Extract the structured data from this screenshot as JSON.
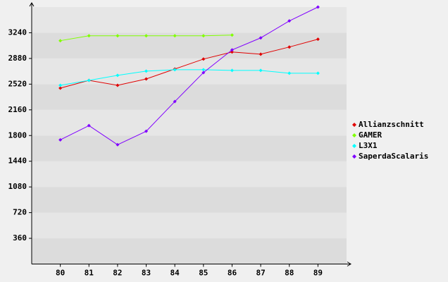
{
  "chart_data": {
    "type": "line",
    "categories": [
      "80",
      "81",
      "82",
      "83",
      "84",
      "85",
      "86",
      "87",
      "88",
      "89"
    ],
    "series": [
      {
        "name": "Allianzschnitt",
        "color": "#e00000",
        "values": [
          2464,
          2573,
          2504,
          2593,
          2732,
          2871,
          2970,
          2940,
          3040,
          3149
        ]
      },
      {
        "name": "GAMER",
        "color": "#80ff00",
        "values": [
          3129,
          3198,
          3198,
          3198,
          3198,
          3198,
          3208,
          null,
          null,
          null
        ]
      },
      {
        "name": "L3X1",
        "color": "#00ffff",
        "values": [
          2504,
          2573,
          2643,
          2702,
          2722,
          2722,
          2712,
          2712,
          2673,
          2673
        ]
      },
      {
        "name": "SaperdaScalaris",
        "color": "#8000ff",
        "values": [
          1740,
          1939,
          1671,
          1860,
          2276,
          2682,
          3000,
          3168,
          3406,
          3600
        ]
      }
    ],
    "ylim": [
      0,
      3600
    ],
    "yticks": [
      360,
      720,
      1080,
      1440,
      1800,
      2160,
      2520,
      2880,
      3240
    ],
    "grid": true,
    "legend": "right"
  }
}
